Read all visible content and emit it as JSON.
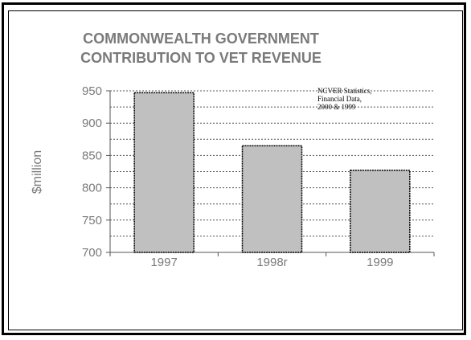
{
  "chart_data": {
    "type": "bar",
    "title_lines": [
      "COMMONWEALTH  GOVERNMENT",
      "CONTRIBUTION TO VET REVENUE"
    ],
    "ylabel": "$million",
    "xlabel": "",
    "categories": [
      "1997",
      "1998r",
      "1999"
    ],
    "values": [
      947,
      865,
      827
    ],
    "ylim": [
      700,
      950
    ],
    "yticks": [
      "700",
      "750",
      "800",
      "850",
      "900",
      "950"
    ],
    "annotation_lines": [
      "NCVER Statistics,",
      "Financial Data,",
      "2000 & 1999"
    ],
    "grid": true,
    "bar_color": "#c0c0c0"
  }
}
